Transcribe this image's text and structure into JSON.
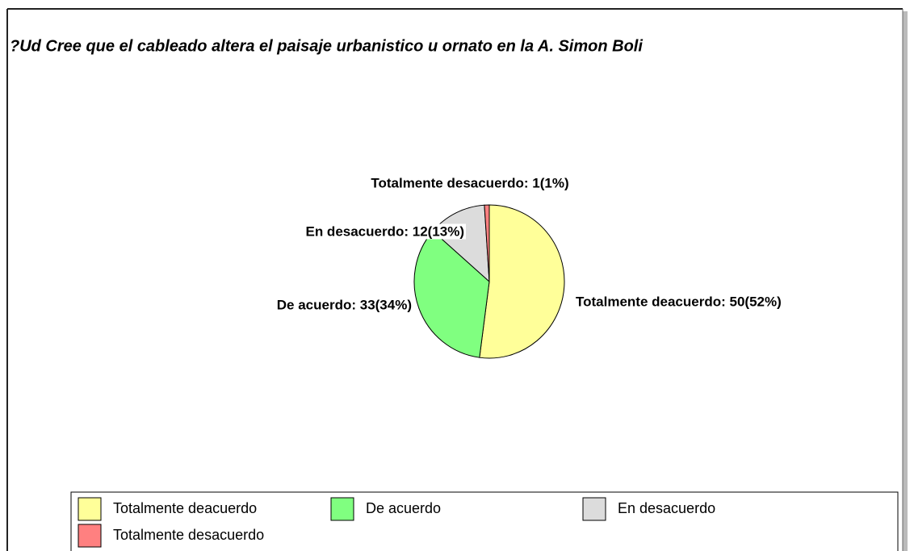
{
  "chart_data": {
    "type": "pie",
    "title": "?Ud Cree que el cableado altera el paisaje urbanistico u ornato en la A. Simon Boli",
    "categories": [
      "Totalmente deacuerdo",
      "De acuerdo",
      "En desacuerdo",
      "Totalmente desacuerdo"
    ],
    "values": [
      50,
      33,
      12,
      1
    ],
    "value_labels": [
      "Totalmente deacuerdo: 50(52%)",
      "De acuerdo: 33(34%)",
      "En desacuerdo: 12(13%)",
      "Totalmente desacuerdo: 1(1%)"
    ],
    "colors": [
      "#ffff99",
      "#80ff80",
      "#dcdcdc",
      "#ff8080"
    ],
    "legend": "bottom"
  }
}
